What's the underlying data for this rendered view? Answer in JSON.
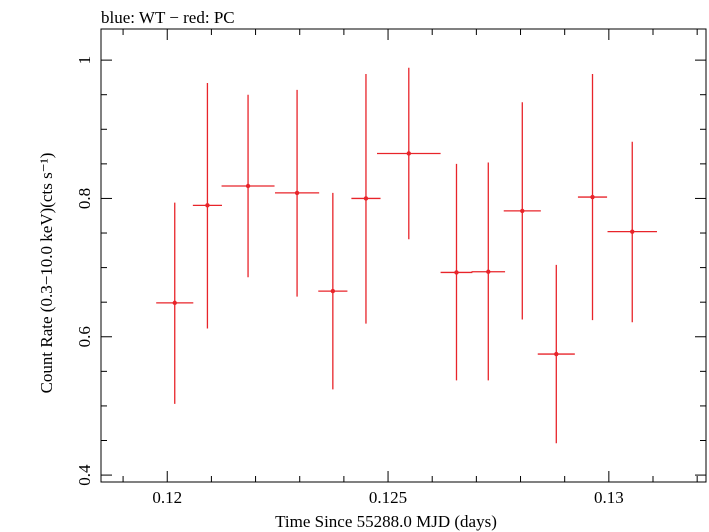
{
  "chart_data": {
    "type": "scatter",
    "title": "blue: WT − red: PC",
    "xlabel": "Time Since 55288.0 MJD (days)",
    "ylabel": "Count Rate (0.3−10.0 keV)(cts s⁻¹)",
    "xlim": [
      0.1185,
      0.1322
    ],
    "ylim": [
      0.39,
      1.045
    ],
    "x_ticks": [
      0.12,
      0.125,
      0.13
    ],
    "x_tick_labels": [
      "0.12",
      "0.125",
      "0.13"
    ],
    "y_ticks": [
      0.4,
      0.6,
      0.8,
      1.0
    ],
    "y_tick_labels": [
      "0.4",
      "0.6",
      "0.8",
      "1"
    ],
    "grid": false,
    "series": [
      {
        "color": "#e8242a",
        "points": [
          {
            "x": 0.12017,
            "y": 0.649,
            "xerr": 0.00042,
            "ylow": 0.503,
            "yhigh": 0.794
          },
          {
            "x": 0.12091,
            "y": 0.79,
            "xerr": 0.00033,
            "ylow": 0.612,
            "yhigh": 0.967
          },
          {
            "x": 0.12183,
            "y": 0.818,
            "xerr": 0.0006,
            "ylow": 0.686,
            "yhigh": 0.95
          },
          {
            "x": 0.12294,
            "y": 0.808,
            "xerr": 0.0005,
            "ylow": 0.658,
            "yhigh": 0.957
          },
          {
            "x": 0.12375,
            "y": 0.666,
            "xerr": 0.00033,
            "ylow": 0.524,
            "yhigh": 0.808
          },
          {
            "x": 0.1245,
            "y": 0.8,
            "xerr": 0.00033,
            "ylow": 0.619,
            "yhigh": 0.98
          },
          {
            "x": 0.12547,
            "y": 0.865,
            "xerr": 0.00072,
            "ylow": 0.741,
            "yhigh": 0.989
          },
          {
            "x": 0.12655,
            "y": 0.693,
            "xerr": 0.00036,
            "ylow": 0.537,
            "yhigh": 0.85
          },
          {
            "x": 0.12727,
            "y": 0.694,
            "xerr": 0.00038,
            "ylow": 0.537,
            "yhigh": 0.852
          },
          {
            "x": 0.12804,
            "y": 0.782,
            "xerr": 0.00042,
            "ylow": 0.625,
            "yhigh": 0.939
          },
          {
            "x": 0.12881,
            "y": 0.575,
            "xerr": 0.00042,
            "ylow": 0.446,
            "yhigh": 0.704
          },
          {
            "x": 0.12963,
            "y": 0.802,
            "xerr": 0.00033,
            "ylow": 0.624,
            "yhigh": 0.98
          },
          {
            "x": 0.13053,
            "y": 0.752,
            "xerr": 0.00056,
            "ylow": 0.621,
            "yhigh": 0.882
          }
        ]
      }
    ]
  }
}
